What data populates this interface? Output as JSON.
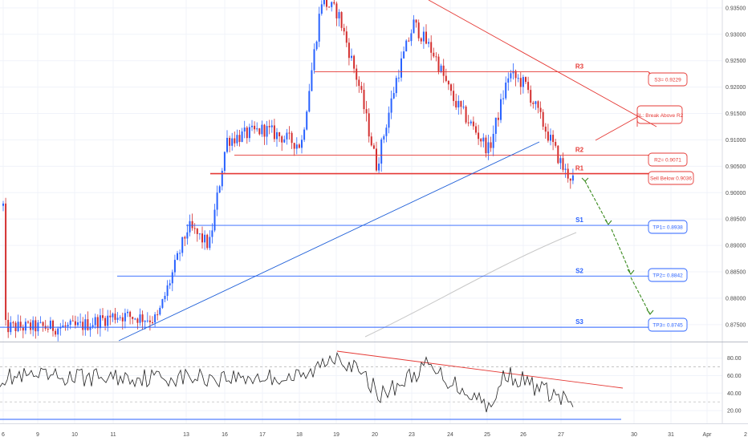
{
  "colors": {
    "background": "#ffffff",
    "grid": "#f0f3fa",
    "candle_up": "#2962ff",
    "candle_down": "#d32f2f",
    "resistance": "#e53935",
    "support": "#2962ff",
    "trendline": "#1e5fd8",
    "projection": "#3a8a1e",
    "ma": "#c8c8c8",
    "rsi": "#222222",
    "rsi_trend": "#e53935",
    "rsi_floor": "#2962ff"
  },
  "chart_data": [
    {
      "type": "candlestick",
      "title": "",
      "x_ticks": [
        "6",
        "9",
        "10",
        "11",
        "13",
        "16",
        "17",
        "18",
        "19",
        "20",
        "23",
        "24",
        "25",
        "26",
        "27",
        "30",
        "31",
        "Apr",
        "2"
      ],
      "y_ticks": [
        "0.93500",
        "0.93000",
        "0.92500",
        "0.92000",
        "0.91500",
        "0.91000",
        "0.90500",
        "0.90000",
        "0.89500",
        "0.89000",
        "0.88500",
        "0.88000",
        "0.87500"
      ],
      "ylim": [
        0.873,
        0.9365
      ],
      "grid": true,
      "price_path": [
        [
          "6",
          0.8745
        ],
        [
          "9",
          0.8745
        ],
        [
          "10",
          0.8745
        ],
        [
          "11",
          0.8768
        ],
        [
          "11",
          0.876
        ],
        [
          "13",
          0.8935
        ],
        [
          "13",
          0.89
        ],
        [
          "16",
          0.91
        ],
        [
          "17",
          0.912
        ],
        [
          "18",
          0.909
        ],
        [
          "18",
          0.9365
        ],
        [
          "19",
          0.934
        ],
        [
          "19",
          0.92
        ],
        [
          "20",
          0.905
        ],
        [
          "20",
          0.922
        ],
        [
          "23",
          0.932
        ],
        [
          "23",
          0.926
        ],
        [
          "24",
          0.918
        ],
        [
          "25",
          0.908
        ],
        [
          "25",
          0.9225
        ],
        [
          "26",
          0.9205
        ],
        [
          "27",
          0.904
        ],
        [
          "27",
          0.8975
        ]
      ],
      "levels": [
        {
          "label": "R3",
          "value": 0.9229,
          "callout": "S3= 0.9229",
          "kind": "resistance"
        },
        {
          "label": "R2",
          "value": 0.9071,
          "callout": "R2= 0.9071",
          "kind": "resistance"
        },
        {
          "label": "R1",
          "value": 0.9036,
          "callout": "Sell Below 0.9036",
          "kind": "resistance"
        },
        {
          "label": "S1",
          "value": 0.8938,
          "callout": "TP1= 0.8938",
          "kind": "support"
        },
        {
          "label": "S2",
          "value": 0.8842,
          "callout": "TP2= 0.8842",
          "kind": "support"
        },
        {
          "label": "S3",
          "value": 0.8745,
          "callout": "TP3= 0.8745",
          "kind": "support"
        }
      ],
      "stop_loss_note": "SL: Break Above R2"
    },
    {
      "type": "line",
      "title": "",
      "y_ticks": [
        "80.00",
        "60.00",
        "40.00",
        "20.00"
      ],
      "ylim": [
        10,
        88
      ],
      "dashed_levels": [
        70,
        30
      ]
    }
  ]
}
